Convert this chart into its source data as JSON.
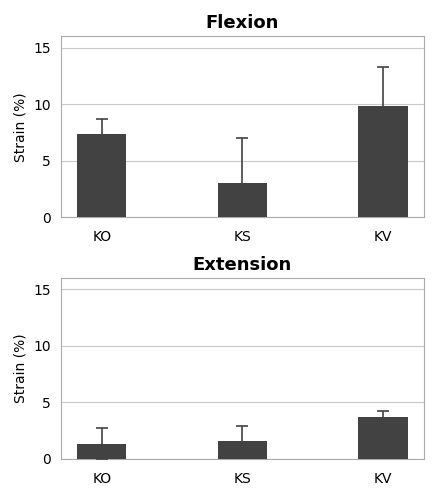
{
  "flexion": {
    "title": "Flexion",
    "categories": [
      "KO",
      "KS",
      "KV"
    ],
    "values": [
      7.4,
      3.0,
      9.8
    ],
    "errors": [
      1.3,
      4.0,
      3.5
    ],
    "ylim": [
      0,
      16
    ],
    "yticks": [
      0,
      5,
      10,
      15
    ],
    "ylabel": "Strain (%)"
  },
  "extension": {
    "title": "Extension",
    "categories": [
      "KO",
      "KS",
      "KV"
    ],
    "values": [
      1.3,
      1.6,
      3.7
    ],
    "errors": [
      1.4,
      1.3,
      0.5
    ],
    "ylim": [
      0,
      16
    ],
    "yticks": [
      0,
      5,
      10,
      15
    ],
    "ylabel": "Strain (%)"
  },
  "bar_color": "#424242",
  "bar_width": 0.35,
  "error_color": "#424242",
  "error_capsize": 4,
  "error_linewidth": 1.2,
  "background_color": "#ffffff",
  "grid_color": "#c8c8c8",
  "title_fontsize": 13,
  "label_fontsize": 10,
  "tick_fontsize": 10,
  "spine_color": "#aaaaaa"
}
